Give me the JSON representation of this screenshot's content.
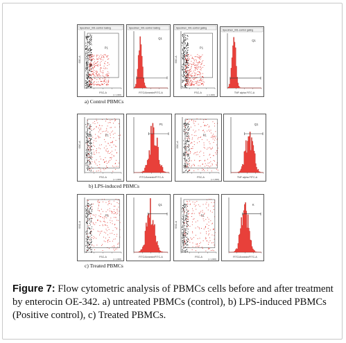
{
  "figure": {
    "label": "Figure 7:",
    "caption": " Flow cytometric analysis of PBMCs cells before and after treatment by enterocin OE-342. a) untreated PBMCs (control), b) LPS-induced PBMCs (Positive control), c) Treated PBMCs."
  },
  "rows": [
    {
      "label": "a)  Control PBMCs",
      "plots": [
        {
          "kind": "scatter",
          "header": "Specimen_001-control Gating",
          "gate": "P1",
          "xlabel": "FSC-A",
          "ylabel": "SSC-A",
          "unit": "(x 1,000)"
        },
        {
          "kind": "histogram",
          "header": "Specimen_001-control Gating",
          "gate": "Q1",
          "xlabel": "FITC/Annexin/FITC-A"
        },
        {
          "kind": "scatter",
          "header": "Specimen_001-control gating",
          "gate": "P1",
          "xlabel": "FSC-A",
          "ylabel": "SSC-A",
          "unit": "(x 1,000)"
        },
        {
          "kind": "histogram",
          "header": "Specimen_001-control gating",
          "gate": "Q1",
          "xlabel": "TNF alpha FITC-A"
        }
      ]
    },
    {
      "label": "b)  LPS-induced PBMCs",
      "plots": [
        {
          "kind": "scatter",
          "header": "",
          "gate": "P1",
          "xlabel": "FSC-A",
          "ylabel": "SSC-A",
          "unit": "(x 1,000)"
        },
        {
          "kind": "histogram",
          "header": "",
          "gate": "P1",
          "xlabel": "FITC/Annexin/FITC-A"
        },
        {
          "kind": "scatter",
          "header": "",
          "gate": "P1",
          "xlabel": "FSC-A",
          "ylabel": "SSC-A",
          "unit": "(x 1,000)"
        },
        {
          "kind": "histogram",
          "header": "",
          "gate": "Q1",
          "xlabel": "TNF alpha FITC-A"
        }
      ]
    },
    {
      "label": "c)  Treated PBMCs",
      "plots": [
        {
          "kind": "scatter",
          "header": "",
          "gate": "P1",
          "xlabel": "FSC-A",
          "ylabel": "SSC-A",
          "unit": "(x 1,000)"
        },
        {
          "kind": "histogram",
          "header": "",
          "gate": "Q1",
          "xlabel": "FITC/Annexin/FITC-A"
        },
        {
          "kind": "scatter",
          "header": "",
          "gate": "P1",
          "xlabel": "FSC-A",
          "ylabel": "SSC-A",
          "unit": "(x 1,000)"
        },
        {
          "kind": "histogram",
          "header": "",
          "gate": "K",
          "xlabel": "FITC/Annexin/FITC-A"
        }
      ]
    }
  ],
  "colors": {
    "dots_red": "#e0302a",
    "dots_black": "#111111",
    "hist_fill": "#e8403a",
    "gate_line": "#333333"
  }
}
